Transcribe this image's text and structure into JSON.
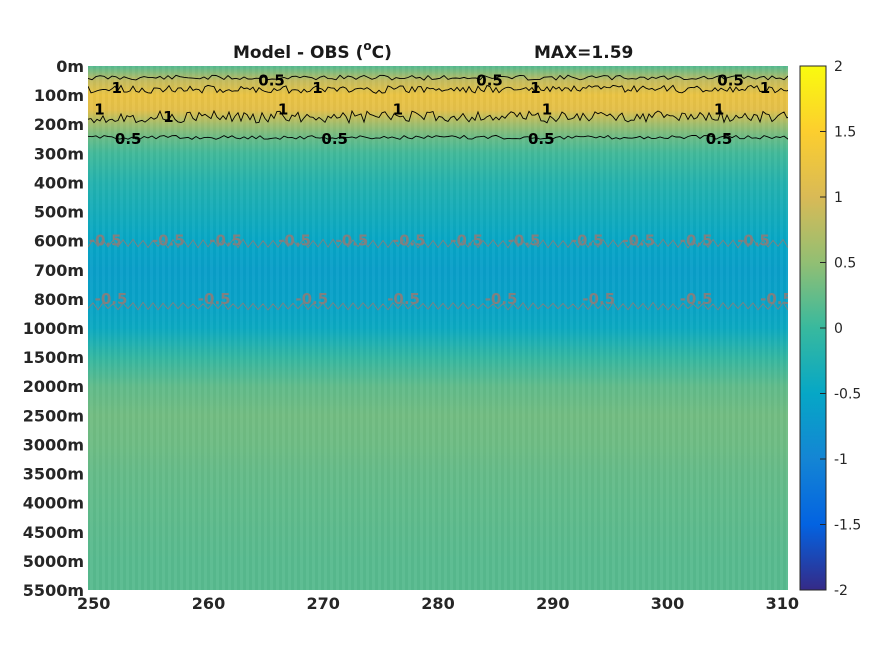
{
  "title": {
    "left": "Model - OBS (",
    "sup": "o",
    "unit": "C)",
    "right": "MAX=1.59"
  },
  "colors": {
    "parula": [
      "#352a87",
      "#0363e1",
      "#1485d4",
      "#06a7c6",
      "#38b99e",
      "#92bf73",
      "#d9ba56",
      "#fcce2e",
      "#f9fb0e"
    ],
    "contour_positive": "#000000",
    "contour_negative": "#808080"
  },
  "chart_data": {
    "type": "heatmap",
    "colormap": "parula",
    "clim": [
      -2,
      2
    ],
    "xlim": [
      249.5,
      310.5
    ],
    "x_ticks": [
      250,
      260,
      270,
      280,
      290,
      300,
      310
    ],
    "y_reversed": true,
    "y_ticks": [
      "0m",
      "100m",
      "200m",
      "300m",
      "400m",
      "500m",
      "600m",
      "700m",
      "800m",
      "1000m",
      "1500m",
      "2000m",
      "2500m",
      "3000m",
      "3500m",
      "4000m",
      "4500m",
      "5000m",
      "5500m"
    ],
    "colorbar": {
      "location": "right",
      "ticks": [
        "2",
        "1.5",
        "1",
        "0.5",
        "0",
        "-0.5",
        "-1",
        "-1.5",
        "-2"
      ],
      "tick_values": [
        2,
        1.5,
        1,
        0.5,
        0,
        -0.5,
        -1,
        -1.5,
        -2
      ]
    },
    "max": 1.59,
    "level_profile": [
      {
        "depth": "0m",
        "value": 0.15
      },
      {
        "depth": "50m",
        "value": 0.85
      },
      {
        "depth": "100m",
        "value": 1.25
      },
      {
        "depth": "150m",
        "value": 1.15
      },
      {
        "depth": "200m",
        "value": 0.6
      },
      {
        "depth": "250m",
        "value": 0.25
      },
      {
        "depth": "300m",
        "value": 0.05
      },
      {
        "depth": "400m",
        "value": -0.2
      },
      {
        "depth": "500m",
        "value": -0.35
      },
      {
        "depth": "600m",
        "value": -0.5
      },
      {
        "depth": "700m",
        "value": -0.62
      },
      {
        "depth": "800m",
        "value": -0.58
      },
      {
        "depth": "1000m",
        "value": -0.45
      },
      {
        "depth": "1500m",
        "value": -0.05
      },
      {
        "depth": "2000m",
        "value": 0.22
      },
      {
        "depth": "2500m",
        "value": 0.32
      },
      {
        "depth": "3000m",
        "value": 0.3
      },
      {
        "depth": "3500m",
        "value": 0.25
      },
      {
        "depth": "4000m",
        "value": 0.22
      },
      {
        "depth": "4500m",
        "value": 0.2
      },
      {
        "depth": "5000m",
        "value": 0.18
      },
      {
        "depth": "5500m",
        "value": 0.18
      }
    ],
    "contour_levels": [
      -0.5,
      0.5,
      1
    ],
    "contour_labels": [
      {
        "text": "0.5",
        "level": 0.5,
        "x": 265.5,
        "depth": "50m"
      },
      {
        "text": "0.5",
        "level": 0.5,
        "x": 284.5,
        "depth": "50m"
      },
      {
        "text": "0.5",
        "level": 0.5,
        "x": 305.5,
        "depth": "50m"
      },
      {
        "text": "1",
        "level": 1,
        "x": 252,
        "depth": "75m"
      },
      {
        "text": "1",
        "level": 1,
        "x": 250.5,
        "depth": "150m"
      },
      {
        "text": "1",
        "level": 1,
        "x": 269.5,
        "depth": "75m"
      },
      {
        "text": "1",
        "level": 1,
        "x": 288.5,
        "depth": "75m"
      },
      {
        "text": "1",
        "level": 1,
        "x": 308.5,
        "depth": "75m"
      },
      {
        "text": "1",
        "level": 1,
        "x": 256.5,
        "depth": "175m"
      },
      {
        "text": "1",
        "level": 1,
        "x": 266.5,
        "depth": "150m"
      },
      {
        "text": "1",
        "level": 1,
        "x": 276.5,
        "depth": "150m"
      },
      {
        "text": "1",
        "level": 1,
        "x": 289.5,
        "depth": "150m"
      },
      {
        "text": "1",
        "level": 1,
        "x": 304.5,
        "depth": "150m"
      },
      {
        "text": "0.5",
        "level": 0.5,
        "x": 253,
        "depth": "250m"
      },
      {
        "text": "0.5",
        "level": 0.5,
        "x": 271,
        "depth": "250m"
      },
      {
        "text": "0.5",
        "level": 0.5,
        "x": 289,
        "depth": "250m"
      },
      {
        "text": "0.5",
        "level": 0.5,
        "x": 304.5,
        "depth": "250m"
      },
      {
        "text": "-0.5",
        "level": -0.5,
        "x": 251,
        "depth": "600m"
      },
      {
        "text": "-0.5",
        "level": -0.5,
        "x": 256.5,
        "depth": "600m"
      },
      {
        "text": "-0.5",
        "level": -0.5,
        "x": 261.5,
        "depth": "600m"
      },
      {
        "text": "-0.5",
        "level": -0.5,
        "x": 267.5,
        "depth": "600m"
      },
      {
        "text": "-0.5",
        "level": -0.5,
        "x": 272.5,
        "depth": "600m"
      },
      {
        "text": "-0.5",
        "level": -0.5,
        "x": 277.5,
        "depth": "600m"
      },
      {
        "text": "-0.5",
        "level": -0.5,
        "x": 282.5,
        "depth": "600m"
      },
      {
        "text": "-0.5",
        "level": -0.5,
        "x": 287.5,
        "depth": "600m"
      },
      {
        "text": "-0.5",
        "level": -0.5,
        "x": 293,
        "depth": "600m"
      },
      {
        "text": "-0.5",
        "level": -0.5,
        "x": 297.5,
        "depth": "600m"
      },
      {
        "text": "-0.5",
        "level": -0.5,
        "x": 302.5,
        "depth": "600m"
      },
      {
        "text": "-0.5",
        "level": -0.5,
        "x": 307.5,
        "depth": "600m"
      },
      {
        "text": "-0.5",
        "level": -0.5,
        "x": 251.5,
        "depth": "800m"
      },
      {
        "text": "-0.5",
        "level": -0.5,
        "x": 260.5,
        "depth": "800m"
      },
      {
        "text": "-0.5",
        "level": -0.5,
        "x": 269,
        "depth": "800m"
      },
      {
        "text": "-0.5",
        "level": -0.5,
        "x": 277,
        "depth": "800m"
      },
      {
        "text": "-0.5",
        "level": -0.5,
        "x": 285.5,
        "depth": "800m"
      },
      {
        "text": "-0.5",
        "level": -0.5,
        "x": 294,
        "depth": "800m"
      },
      {
        "text": "-0.5",
        "level": -0.5,
        "x": 302.5,
        "depth": "800m"
      },
      {
        "text": "-0.5",
        "level": -0.5,
        "x": 309.5,
        "depth": "800m"
      }
    ]
  }
}
